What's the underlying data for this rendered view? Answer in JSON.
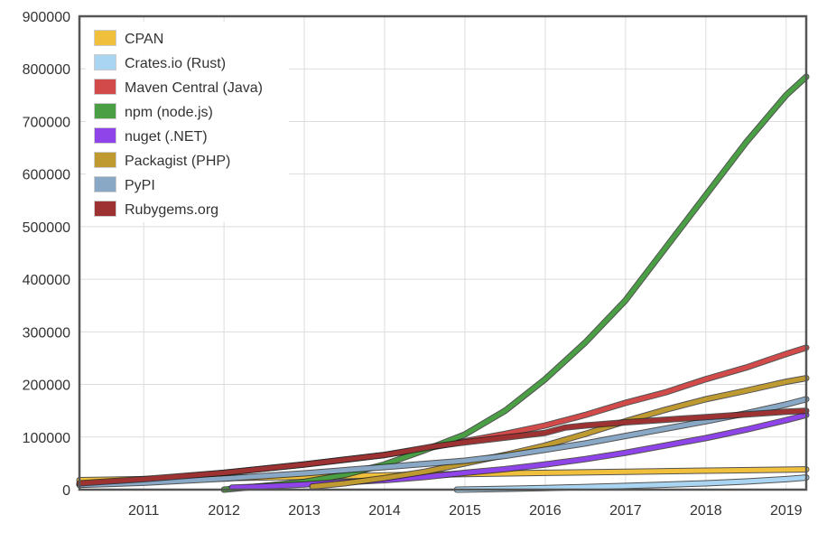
{
  "chart_data": {
    "type": "line",
    "title": "",
    "xlabel": "",
    "ylabel": "",
    "xlim": [
      2010.2,
      2019.25
    ],
    "ylim": [
      0,
      900000
    ],
    "grid": true,
    "legend_position": "top-left",
    "x_ticks": [
      "2011",
      "2012",
      "2013",
      "2014",
      "2015",
      "2016",
      "2017",
      "2018",
      "2019"
    ],
    "y_ticks": [
      "0",
      "100000",
      "200000",
      "300000",
      "400000",
      "500000",
      "600000",
      "700000",
      "800000",
      "900000"
    ],
    "series": [
      {
        "name": "CPAN",
        "color": "#f0c03c",
        "x": [
          2010.2,
          2011,
          2012,
          2013,
          2014,
          2015,
          2016,
          2017,
          2018,
          2019,
          2019.25
        ],
        "y": [
          18000,
          20000,
          22000,
          24500,
          27000,
          29500,
          32000,
          34000,
          36000,
          38000,
          38500
        ]
      },
      {
        "name": "Crates.io (Rust)",
        "color": "#a9d5f2",
        "x": [
          2014.9,
          2015.5,
          2016,
          2016.5,
          2017,
          2017.5,
          2018,
          2018.5,
          2019,
          2019.25
        ],
        "y": [
          0,
          1500,
          3000,
          5000,
          7000,
          9500,
          12000,
          15500,
          20000,
          23000
        ]
      },
      {
        "name": "Maven Central (Java)",
        "color": "#d24a4a",
        "x": [
          2010.2,
          2011,
          2012,
          2013,
          2014,
          2014.5,
          2015,
          2015.5,
          2016,
          2016.5,
          2017,
          2017.5,
          2018,
          2018.5,
          2019,
          2019.25
        ],
        "y": [
          10000,
          18000,
          32000,
          48000,
          66000,
          78000,
          92000,
          106000,
          122000,
          142000,
          165000,
          185000,
          210000,
          232000,
          258000,
          270000
        ]
      },
      {
        "name": "npm (node.js)",
        "color": "#4a9e44",
        "x": [
          2012.0,
          2012.5,
          2013,
          2013.5,
          2014,
          2014.5,
          2015,
          2015.5,
          2016,
          2016.5,
          2017,
          2017.5,
          2018,
          2018.5,
          2019,
          2019.25
        ],
        "y": [
          0,
          7000,
          15000,
          28000,
          48000,
          75000,
          105000,
          150000,
          210000,
          280000,
          360000,
          460000,
          560000,
          660000,
          750000,
          785000
        ]
      },
      {
        "name": "nuget (.NET)",
        "color": "#8e44e8",
        "x": [
          2012.1,
          2012.5,
          2013,
          2013.5,
          2014,
          2014.5,
          2015,
          2015.5,
          2016,
          2016.5,
          2017,
          2017.5,
          2018,
          2018.5,
          2019,
          2019.25
        ],
        "y": [
          4000,
          6000,
          10000,
          14000,
          18000,
          24000,
          32000,
          39000,
          48000,
          58000,
          70000,
          84000,
          98000,
          114000,
          132000,
          142000
        ]
      },
      {
        "name": "Packagist (PHP)",
        "color": "#bf9a30",
        "x": [
          2013.1,
          2013.5,
          2014,
          2014.5,
          2015,
          2015.5,
          2016,
          2016.5,
          2017,
          2017.5,
          2018,
          2018.5,
          2019,
          2019.25
        ],
        "y": [
          6000,
          12000,
          22000,
          34000,
          50000,
          66000,
          84000,
          106000,
          130000,
          152000,
          172000,
          188000,
          205000,
          212000
        ]
      },
      {
        "name": "PyPI",
        "color": "#88a8c6",
        "x": [
          2010.2,
          2011,
          2012,
          2013,
          2014,
          2015,
          2015.5,
          2016,
          2016.5,
          2017,
          2017.5,
          2018,
          2018.5,
          2019,
          2019.25
        ],
        "y": [
          9000,
          13000,
          21000,
          31000,
          43000,
          55000,
          64000,
          76000,
          88000,
          102000,
          116000,
          130000,
          145000,
          162000,
          172000
        ]
      },
      {
        "name": "Rubygems.org",
        "color": "#9e3232",
        "x": [
          2010.2,
          2011,
          2012,
          2013,
          2014,
          2014.6,
          2015,
          2016,
          2016.25,
          2016.5,
          2017,
          2017.5,
          2018,
          2018.5,
          2019,
          2019.25
        ],
        "y": [
          12000,
          20000,
          32000,
          48000,
          66000,
          82000,
          90000,
          108000,
          118000,
          122000,
          128000,
          133000,
          138000,
          143000,
          148000,
          150000
        ]
      }
    ]
  }
}
